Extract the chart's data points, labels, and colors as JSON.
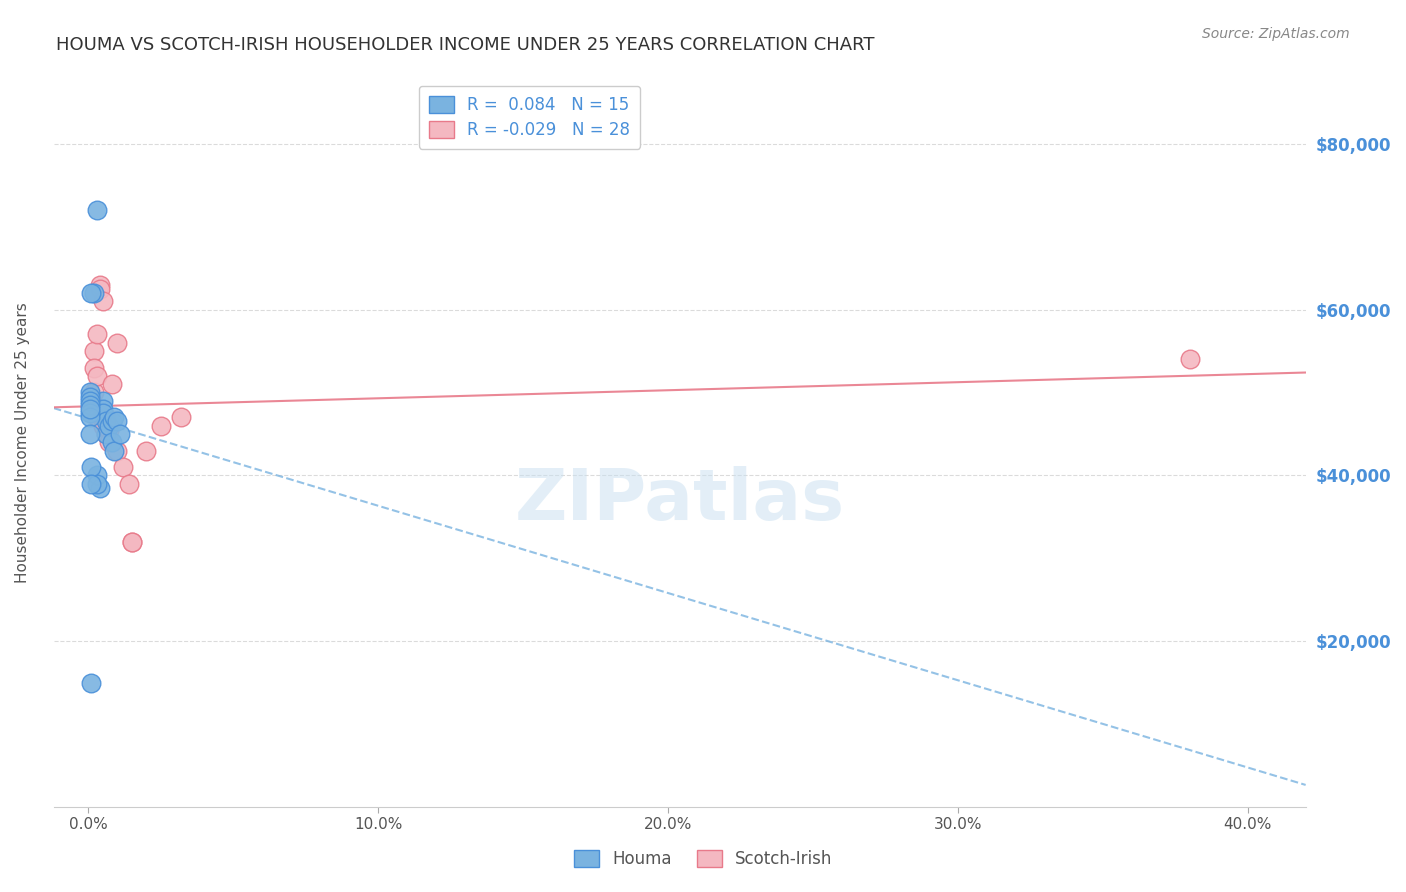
{
  "title": "HOUMA VS SCOTCH-IRISH HOUSEHOLDER INCOME UNDER 25 YEARS CORRELATION CHART",
  "source": "Source: ZipAtlas.com",
  "ylabel": "Householder Income Under 25 years",
  "xlabel_ticks": [
    "0.0%",
    "10.0%",
    "20.0%",
    "30.0%",
    "40.0%"
  ],
  "xlabel_vals": [
    0.0,
    0.1,
    0.2,
    0.3,
    0.4
  ],
  "ytick_labels": [
    "$20,000",
    "$40,000",
    "$60,000",
    "$80,000"
  ],
  "ytick_vals": [
    20000,
    40000,
    60000,
    80000
  ],
  "xlim": [
    -0.012,
    0.42
  ],
  "ylim": [
    0,
    88000
  ],
  "watermark": "ZIPatlas",
  "legend_entries": [
    {
      "label": "R =  0.084   N = 15",
      "color": "#aec6e8"
    },
    {
      "label": "R = -0.029   N = 28",
      "color": "#f4b8c1"
    }
  ],
  "houma_x": [
    0.005,
    0.005,
    0.005,
    0.006,
    0.006,
    0.007,
    0.008,
    0.008,
    0.009,
    0.009,
    0.01,
    0.011,
    0.002,
    0.003,
    0.004
  ],
  "houma_y": [
    49000,
    48000,
    47500,
    46500,
    45000,
    46000,
    46500,
    44000,
    47000,
    43000,
    46500,
    45000,
    62000,
    72000,
    38500
  ],
  "houma_extra_x": [
    0.003,
    0.003,
    0.001,
    0.001,
    0.001,
    0.0005,
    0.0005,
    0.0005,
    0.0005,
    0.0005,
    0.0005,
    0.0005,
    0.001,
    0.0005
  ],
  "houma_extra_y": [
    40000,
    39000,
    41000,
    39000,
    62000,
    50000,
    49500,
    49000,
    48500,
    47500,
    47000,
    45000,
    15000,
    48000
  ],
  "scotch_x": [
    0.001,
    0.001,
    0.001,
    0.002,
    0.002,
    0.002,
    0.003,
    0.003,
    0.003,
    0.004,
    0.004,
    0.005,
    0.005,
    0.006,
    0.006,
    0.007,
    0.007,
    0.008,
    0.01,
    0.01,
    0.012,
    0.014,
    0.015,
    0.015,
    0.02,
    0.025,
    0.032,
    0.38
  ],
  "scotch_y": [
    49500,
    49000,
    48500,
    55000,
    53000,
    50000,
    57000,
    52000,
    47000,
    63000,
    62500,
    61000,
    46000,
    47000,
    45000,
    45500,
    44000,
    51000,
    56000,
    43000,
    41000,
    39000,
    32000,
    32000,
    43000,
    46000,
    47000,
    54000
  ],
  "houma_color": "#7ab3e0",
  "houma_border": "#4a90d9",
  "scotch_color": "#f4b8c1",
  "scotch_border": "#e87a8a",
  "houma_trend_color": "#7ab3e0",
  "scotch_trend_color": "#e87a8a",
  "background_color": "#ffffff",
  "grid_color": "#cccccc",
  "title_color": "#333333",
  "axis_label_color": "#555555",
  "right_tick_color": "#4a90d9"
}
